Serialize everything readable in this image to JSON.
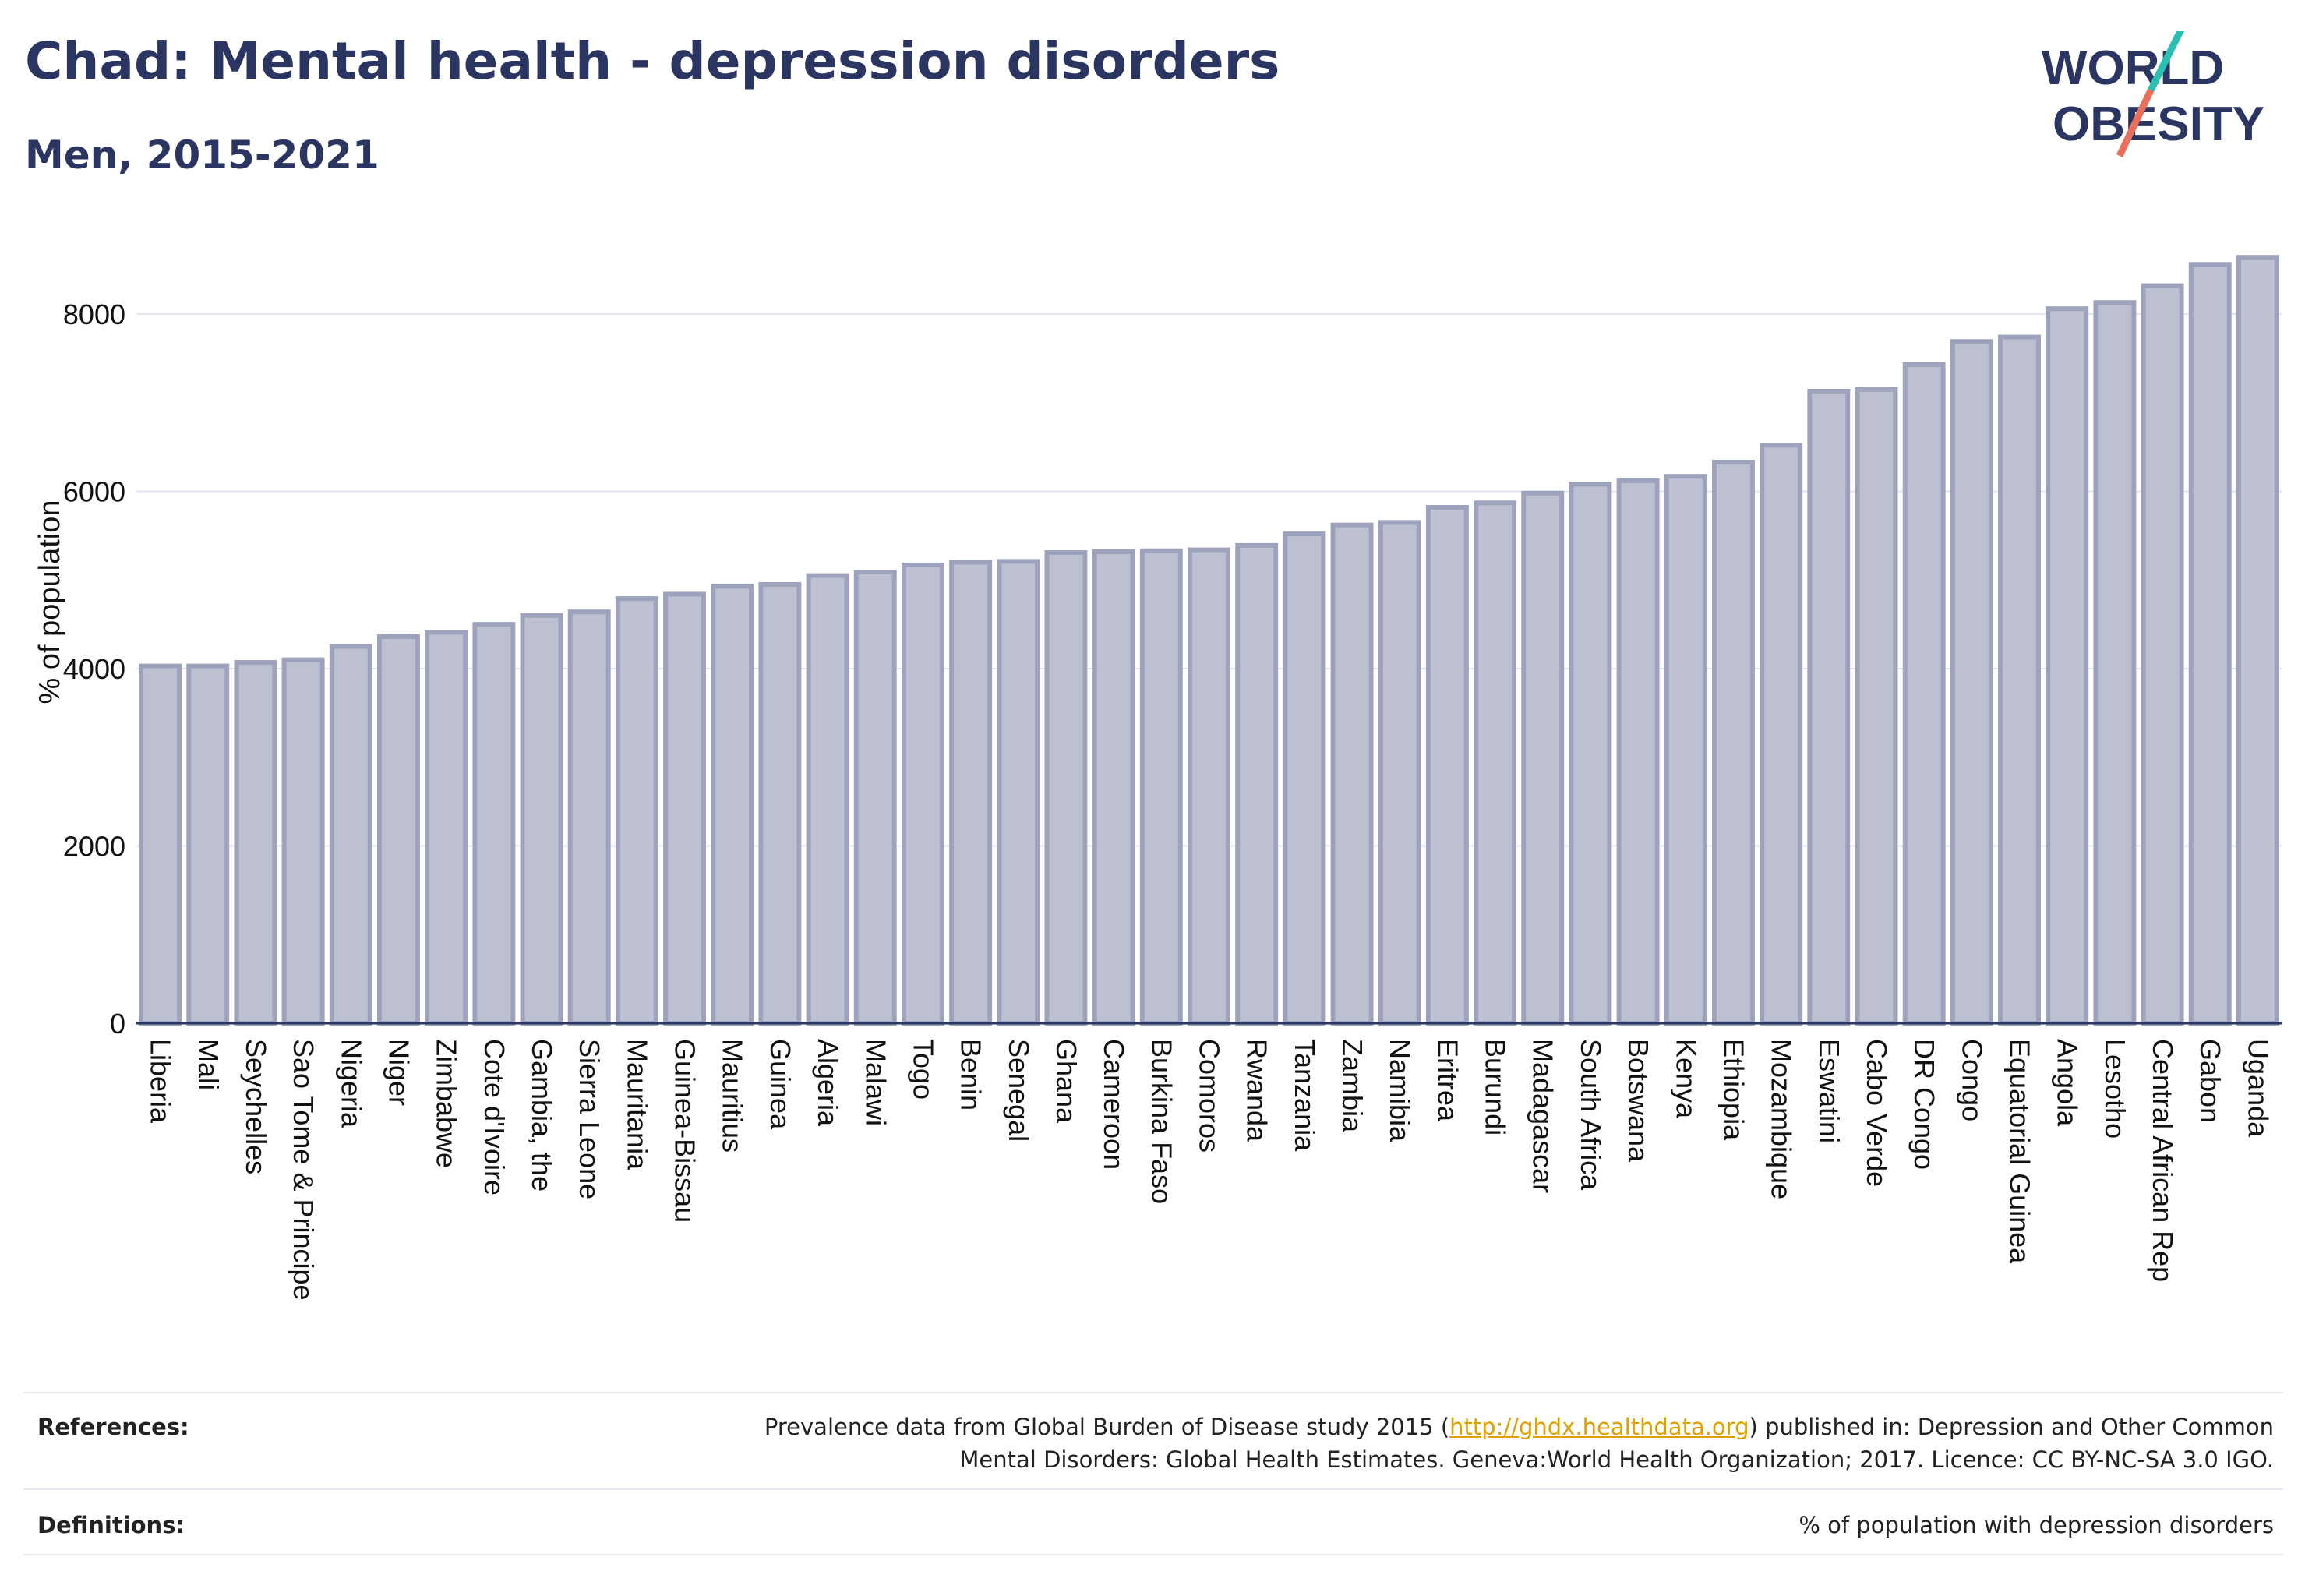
{
  "header": {
    "title": "Chad: Mental health - depression disorders",
    "subtitle": "Men, 2015-2021"
  },
  "logo": {
    "line1": "WORLD",
    "line2": "OBESITY",
    "colors": {
      "text": "#2b3561",
      "slash_top": "#2bbfb4",
      "slash_bottom": "#e8705d"
    }
  },
  "chart_data": {
    "type": "bar",
    "ylabel": "% of population",
    "ylim": [
      0,
      8800
    ],
    "yticks": [
      0,
      2000,
      4000,
      6000,
      8000
    ],
    "grid": true,
    "bar_fill": "#bcc0d0",
    "bar_stroke": "#9ea3bd",
    "categories": [
      "Liberia",
      "Mali",
      "Seychelles",
      "Sao Tome & Principe",
      "Nigeria",
      "Niger",
      "Zimbabwe",
      "Cote d'Ivoire",
      "Gambia, the",
      "Sierra Leone",
      "Mauritania",
      "Guinea-Bissau",
      "Mauritius",
      "Guinea",
      "Algeria",
      "Malawi",
      "Togo",
      "Benin",
      "Senegal",
      "Ghana",
      "Cameroon",
      "Burkina Faso",
      "Comoros",
      "Rwanda",
      "Tanzania",
      "Zambia",
      "Namibia",
      "Eritrea",
      "Burundi",
      "Madagascar",
      "South Africa",
      "Botswana",
      "Kenya",
      "Ethiopia",
      "Mozambique",
      "Eswatini",
      "Cabo Verde",
      "DR Congo",
      "Congo",
      "Equatorial Guinea",
      "Angola",
      "Lesotho",
      "Central African Rep",
      "Gabon",
      "Uganda"
    ],
    "values": [
      4030,
      4030,
      4070,
      4100,
      4250,
      4360,
      4410,
      4500,
      4600,
      4640,
      4790,
      4840,
      4930,
      4950,
      5050,
      5090,
      5170,
      5200,
      5210,
      5310,
      5320,
      5330,
      5340,
      5390,
      5520,
      5620,
      5650,
      5820,
      5870,
      5980,
      6080,
      6120,
      6170,
      6330,
      6520,
      7130,
      7150,
      7430,
      7690,
      7740,
      8060,
      8130,
      8320,
      8560,
      8640
    ]
  },
  "footer": {
    "references_label": "References:",
    "references_before": "Prevalence data from Global Burden of Disease study 2015 (",
    "references_link": "http://ghdx.healthdata.org",
    "references_after": ") published in: Depression and Other Common",
    "references_line2": "Mental Disorders: Global Health Estimates. Geneva:World Health Organization; 2017. Licence: CC BY-NC-SA 3.0 IGO.",
    "definitions_label": "Definitions:",
    "definitions_text": "% of population with depression disorders"
  }
}
